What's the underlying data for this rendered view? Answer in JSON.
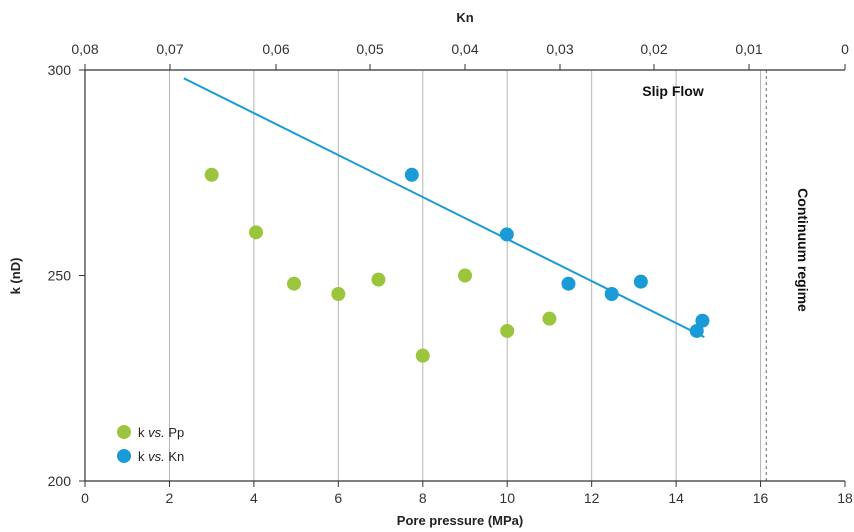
{
  "chart_data": {
    "type": "scatter",
    "xlabel": "Pore pressure (MPa)",
    "ylabel": "k (nD)",
    "x2label": "Kn",
    "xlim": [
      0,
      18
    ],
    "ylim": [
      200,
      300
    ],
    "x_ticks": [
      "0",
      "2",
      "4",
      "6",
      "8",
      "10",
      "12",
      "14",
      "16",
      "18"
    ],
    "y_ticks": [
      "200",
      "250",
      "300"
    ],
    "x2_ticks": [
      {
        "label": "0,08",
        "value": 0.08
      },
      {
        "label": "0,07",
        "value": 0.07
      },
      {
        "label": "0,06",
        "value": 0.06
      },
      {
        "label": "0,05",
        "value": 0.05
      },
      {
        "label": "0,04",
        "value": 0.04
      },
      {
        "label": "0,03",
        "value": 0.03
      },
      {
        "label": "0,02",
        "value": 0.02
      },
      {
        "label": "0,01",
        "value": 0.01
      },
      {
        "label": "0",
        "value": 0
      }
    ],
    "grid": "vertical",
    "series": [
      {
        "name": "k vs. Pp",
        "name_prefix": "k",
        "name_italic": "vs.",
        "name_suffix": "Pp",
        "color": "#9bc53d",
        "x_axis": "Pore pressure (MPa)",
        "points": [
          {
            "x": 3,
            "y": 274.5
          },
          {
            "x": 4.05,
            "y": 260.5
          },
          {
            "x": 4.95,
            "y": 248
          },
          {
            "x": 6,
            "y": 245.5
          },
          {
            "x": 6.95,
            "y": 249
          },
          {
            "x": 8,
            "y": 230.5
          },
          {
            "x": 9,
            "y": 250
          },
          {
            "x": 10,
            "y": 236.5
          },
          {
            "x": 11,
            "y": 239.5
          }
        ]
      },
      {
        "name": "k vs. Kn",
        "name_prefix": "k",
        "name_italic": "vs.",
        "name_suffix": "Kn",
        "color": "#1a9ad6",
        "x_axis": "Kn",
        "points": [
          {
            "x": 0.0456,
            "y": 274.5
          },
          {
            "x": 0.0356,
            "y": 260
          },
          {
            "x": 0.0291,
            "y": 248
          },
          {
            "x": 0.0245,
            "y": 245.5
          },
          {
            "x": 0.0214,
            "y": 248.5
          },
          {
            "x": 0.0155,
            "y": 236.5
          },
          {
            "x": 0.0149,
            "y": 239
          }
        ]
      }
    ],
    "trendline": {
      "color": "#1a9ad6",
      "x_axis": "Kn",
      "from": {
        "x": 0.0687,
        "y": 298
      },
      "to": {
        "x": 0.0147,
        "y": 235
      }
    },
    "regime_boundary": {
      "x": 0.0082,
      "style": "dashed"
    },
    "annotations": [
      {
        "text": "Slip Flow"
      },
      {
        "text": "Continuum regime"
      }
    ],
    "legend_position": "bottom-left"
  }
}
